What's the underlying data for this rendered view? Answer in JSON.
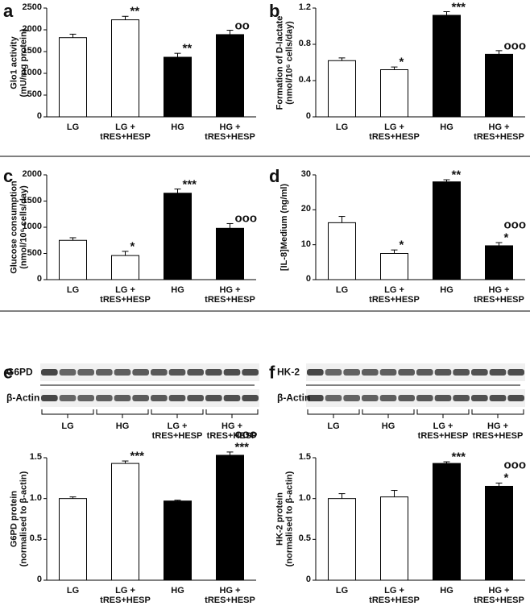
{
  "chart_data": [
    {
      "type": "bar",
      "panel": "a",
      "ylabel": "Glo1 activity\n(mU/mg protein)",
      "categories": [
        "LG",
        "LG +\ntRES+HESP",
        "HG",
        "HG +\ntRES+HESP"
      ],
      "values": [
        1820,
        2230,
        1370,
        1890
      ],
      "errors": [
        80,
        80,
        90,
        100
      ],
      "colors": [
        "#ffffff",
        "#ffffff",
        "#000000",
        "#000000"
      ],
      "significance": [
        null,
        "**",
        "**",
        "oo"
      ],
      "ylim": [
        0,
        2500
      ],
      "yticks": [
        0,
        500,
        1000,
        1500,
        2000,
        2500
      ]
    },
    {
      "type": "bar",
      "panel": "b",
      "ylabel": "Formation of D-lactate\n(nmol/10⁶ cells/day)",
      "categories": [
        "LG",
        "LG +\ntRES+HESP",
        "HG",
        "HG +\ntRES+HESP"
      ],
      "values": [
        0.62,
        0.52,
        1.12,
        0.69
      ],
      "errors": [
        0.03,
        0.03,
        0.04,
        0.04
      ],
      "colors": [
        "#ffffff",
        "#ffffff",
        "#000000",
        "#000000"
      ],
      "significance": [
        null,
        "*",
        "***",
        "ooo"
      ],
      "ylim": [
        0,
        1.2
      ],
      "yticks": [
        0,
        0.4,
        0.8,
        1.2
      ]
    },
    {
      "type": "bar",
      "panel": "c",
      "ylabel": "Glucose consumption\n(nmol/10⁶ cells/day)",
      "categories": [
        "LG",
        "LG +\ntRES+HESP",
        "HG",
        "HG +\ntRES+HESP"
      ],
      "values": [
        750,
        460,
        1650,
        980
      ],
      "errors": [
        50,
        80,
        80,
        90
      ],
      "colors": [
        "#ffffff",
        "#ffffff",
        "#000000",
        "#000000"
      ],
      "significance": [
        null,
        "*",
        "***",
        "ooo"
      ],
      "ylim": [
        0,
        2000
      ],
      "yticks": [
        0,
        500,
        1000,
        1500,
        2000
      ]
    },
    {
      "type": "bar",
      "panel": "d",
      "ylabel": "[IL-8]Medium (ng/ml)",
      "categories": [
        "LG",
        "LG +\ntRES+HESP",
        "HG",
        "HG +\ntRES+HESP"
      ],
      "values": [
        16.3,
        7.5,
        28,
        9.7
      ],
      "errors": [
        1.8,
        1,
        0.6,
        0.9
      ],
      "colors": [
        "#ffffff",
        "#ffffff",
        "#000000",
        "#000000"
      ],
      "significance": [
        null,
        "*",
        "**",
        "ooo\n*"
      ],
      "ylim": [
        0,
        30
      ],
      "yticks": [
        0,
        10,
        20,
        30
      ]
    },
    {
      "type": "bar",
      "ylabel": "G6PD protein\n(normalised to β-actin)",
      "categories": [
        "LG",
        "LG +\ntRES+HESP",
        "HG",
        "HG +\ntRES+HESP"
      ],
      "values": [
        1.0,
        1.43,
        0.97,
        1.53
      ],
      "errors": [
        0.02,
        0.03,
        0.01,
        0.04
      ],
      "colors": [
        "#ffffff",
        "#ffffff",
        "#000000",
        "#000000"
      ],
      "significance": [
        null,
        "***",
        null,
        "ooo\n***"
      ],
      "ylim": [
        0,
        1.5
      ],
      "yticks": [
        0,
        0.5,
        {
          "value": 1,
          "label": "1.0"
        },
        1.5
      ]
    },
    {
      "type": "bar",
      "ylabel": "HK-2 protein\n(normalised to β-actin)",
      "categories": [
        "LG",
        "LG +\ntRES+HESP",
        "HG",
        "HG +\ntRES+HESP"
      ],
      "values": [
        1.0,
        1.02,
        1.43,
        1.15
      ],
      "errors": [
        0.06,
        0.08,
        0.02,
        0.04
      ],
      "colors": [
        "#ffffff",
        "#ffffff",
        "#000000",
        "#000000"
      ],
      "significance": [
        null,
        null,
        "***",
        "ooo\n*"
      ],
      "ylim": [
        0,
        1.5
      ],
      "yticks": [
        0,
        0.5,
        {
          "value": 1,
          "label": "1.0"
        },
        1.5
      ]
    }
  ],
  "blots": [
    {
      "panel": "e",
      "rows": [
        "G6PD",
        "β-Actin"
      ],
      "groups": [
        "LG",
        "HG",
        "LG +\ntRES+HESP",
        "HG +\ntRES+HESP"
      ]
    },
    {
      "panel": "f",
      "rows": [
        "HK-2",
        "β-Actin"
      ],
      "groups": [
        "LG",
        "HG",
        "LG +\ntRES+HESP",
        "HG +\ntRES+HESP"
      ]
    }
  ]
}
